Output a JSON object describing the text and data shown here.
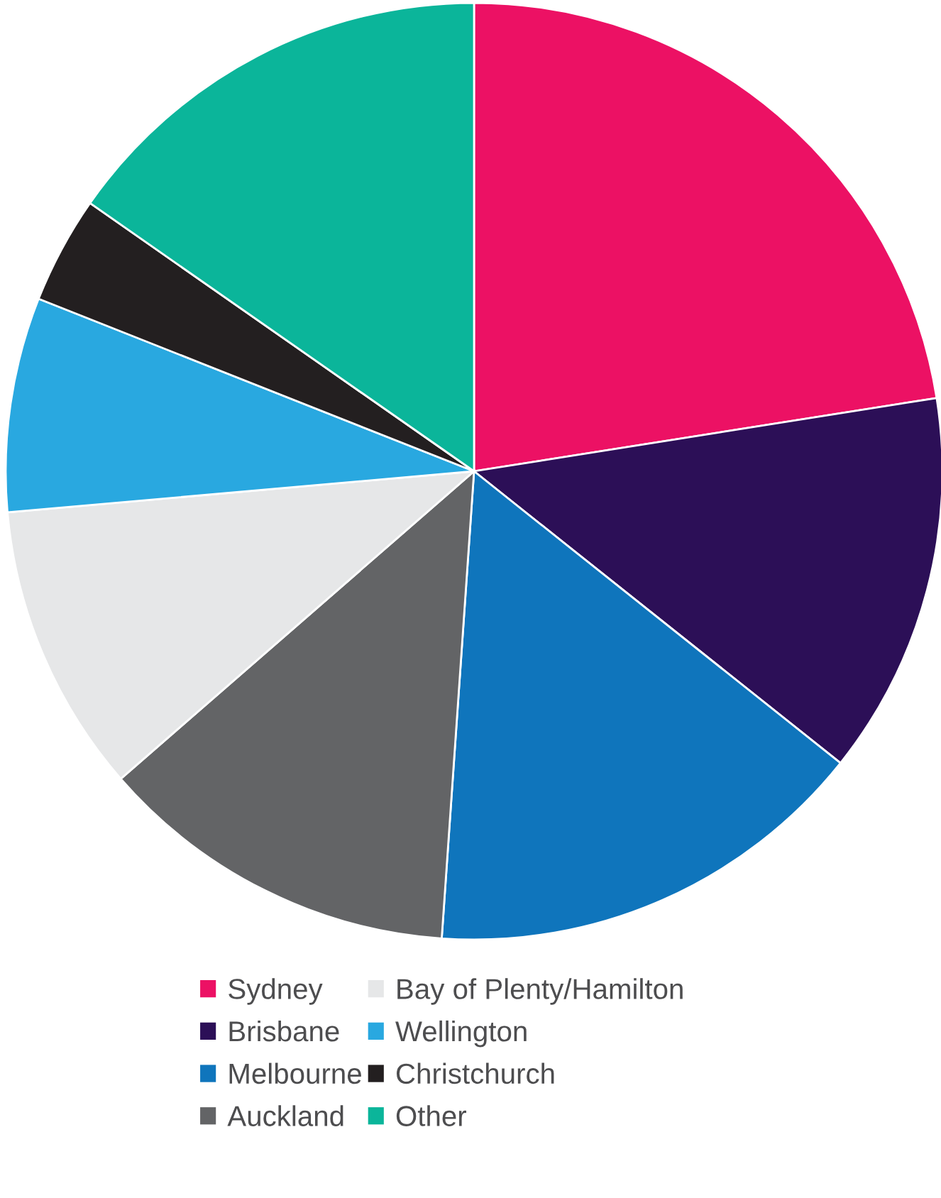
{
  "chart_data": {
    "type": "pie",
    "categories": [
      "Sydney",
      "Brisbane",
      "Melbourne",
      "Auckland",
      "Bay of Plenty/Hamilton",
      "Wellington",
      "Christchurch",
      "Other"
    ],
    "values": [
      22.5,
      13.2,
      15.4,
      12.5,
      10.0,
      7.4,
      3.7,
      15.3
    ],
    "colors": [
      "#ec1164",
      "#2c0f57",
      "#0f75bc",
      "#636466",
      "#e6e7e8",
      "#29a8e0",
      "#231f20",
      "#0bb59a"
    ],
    "legend": "bottom"
  }
}
